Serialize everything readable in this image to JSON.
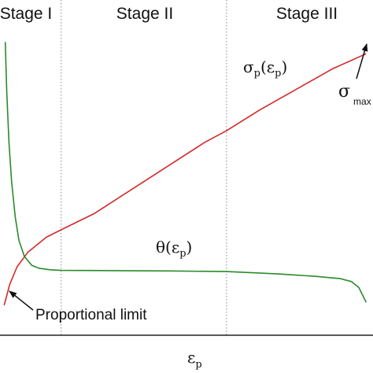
{
  "chart_data": {
    "type": "line",
    "title": "",
    "xlabel_main": "ε",
    "xlabel_sub": "p",
    "ylabel": "",
    "xlim": [
      0,
      1
    ],
    "ylim": [
      0,
      1
    ],
    "grid": false,
    "stages": [
      {
        "label": "Stage I"
      },
      {
        "label": "Stage II"
      },
      {
        "label": "Stage III"
      }
    ],
    "stage_boundaries": [
      0.16,
      0.61
    ],
    "series": [
      {
        "name": "σp(εp)",
        "color": "#d42a2a",
        "points": [
          [
            0.005,
            0.08
          ],
          [
            0.02,
            0.15
          ],
          [
            0.04,
            0.21
          ],
          [
            0.07,
            0.26
          ],
          [
            0.12,
            0.31
          ],
          [
            0.16,
            0.335
          ],
          [
            0.25,
            0.39
          ],
          [
            0.35,
            0.47
          ],
          [
            0.45,
            0.55
          ],
          [
            0.55,
            0.63
          ],
          [
            0.61,
            0.67
          ],
          [
            0.7,
            0.74
          ],
          [
            0.8,
            0.81
          ],
          [
            0.9,
            0.88
          ],
          [
            0.99,
            0.93
          ]
        ]
      },
      {
        "name": "θ(εp)",
        "color": "#2a8a2a",
        "points": [
          [
            0.008,
            0.97
          ],
          [
            0.012,
            0.8
          ],
          [
            0.018,
            0.63
          ],
          [
            0.025,
            0.5
          ],
          [
            0.035,
            0.38
          ],
          [
            0.045,
            0.3
          ],
          [
            0.06,
            0.245
          ],
          [
            0.08,
            0.215
          ],
          [
            0.1,
            0.205
          ],
          [
            0.13,
            0.2
          ],
          [
            0.16,
            0.198
          ],
          [
            0.3,
            0.197
          ],
          [
            0.45,
            0.196
          ],
          [
            0.61,
            0.194
          ],
          [
            0.75,
            0.186
          ],
          [
            0.85,
            0.178
          ],
          [
            0.92,
            0.17
          ],
          [
            0.95,
            0.16
          ],
          [
            0.97,
            0.14
          ],
          [
            0.99,
            0.09
          ]
        ]
      }
    ],
    "annotations": {
      "sigma_label_main": "σ",
      "sigma_label_sub1": "p",
      "sigma_label_paren_open": "(ε",
      "sigma_label_sub2": "p",
      "sigma_label_paren_close": ")",
      "theta_label_main": "θ(ε",
      "theta_label_sub": "p",
      "theta_label_close": ")",
      "sigma_max_main": "σ",
      "sigma_max_sub": "max",
      "proportional_limit": "Proportional limit"
    }
  }
}
